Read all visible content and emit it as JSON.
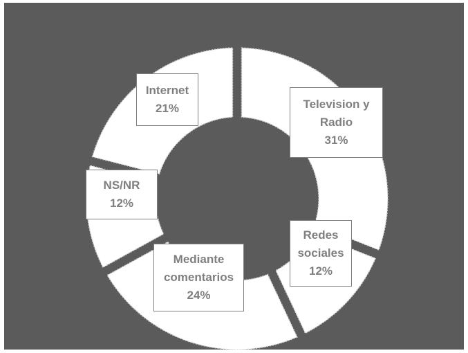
{
  "chart_data": {
    "type": "pie",
    "variant": "donut",
    "title": "",
    "slices": [
      {
        "name": "Television y Radio",
        "value": 31,
        "label_lines": [
          "Television y",
          "Radio",
          "31%"
        ]
      },
      {
        "name": "Redes sociales",
        "value": 12,
        "label_lines": [
          "Redes",
          "sociales",
          "12%"
        ]
      },
      {
        "name": "Mediante comentarios",
        "value": 24,
        "label_lines": [
          "Mediante",
          "comentarios",
          "24%"
        ]
      },
      {
        "name": "NS/NR",
        "value": 12,
        "label_lines": [
          "NS/NR",
          "12%"
        ]
      },
      {
        "name": "Internet",
        "value": 21,
        "label_lines": [
          "Internet",
          "21%"
        ]
      }
    ],
    "colors": {
      "background": "#5b5b5b",
      "slice_fill": "#ffffff",
      "slice_edge": "#cfcfcf",
      "label_text": "#7f7f7f",
      "label_border": "#7f7f7f"
    },
    "legend": "none"
  }
}
